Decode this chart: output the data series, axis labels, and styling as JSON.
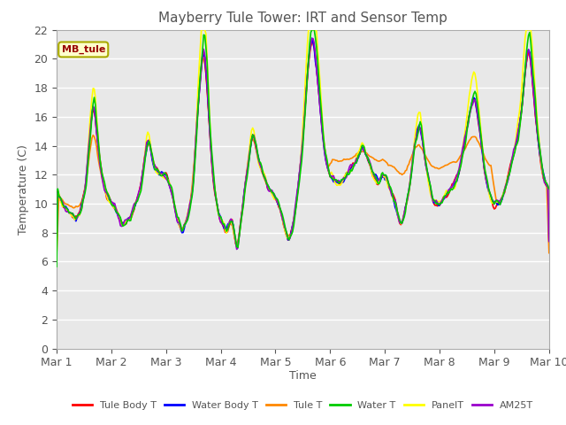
{
  "title": "Mayberry Tule Tower: IRT and Sensor Temp",
  "xlabel": "Time",
  "ylabel": "Temperature (C)",
  "ylim": [
    0,
    22
  ],
  "yticks": [
    0,
    2,
    4,
    6,
    8,
    10,
    12,
    14,
    16,
    18,
    20,
    22
  ],
  "xtick_labels": [
    "Mar 1",
    "Mar 2",
    "Mar 3",
    "Mar 4",
    "Mar 5",
    "Mar 6",
    "Mar 7",
    "Mar 8",
    "Mar 9",
    "Mar 10"
  ],
  "annotation_text": "MB_tule",
  "fig_bg_color": "#ffffff",
  "plot_bg_color": "#e8e8e8",
  "grid_color": "#ffffff",
  "colors": {
    "Tule Body T": "#ff0000",
    "Water Body T": "#0000ff",
    "Tule T": "#ff8800",
    "Water T": "#00cc00",
    "PanelT": "#ffff00",
    "AM25T": "#9900cc"
  },
  "series_order": [
    "Tule Body T",
    "Water Body T",
    "Tule T",
    "Water T",
    "PanelT",
    "AM25T"
  ]
}
